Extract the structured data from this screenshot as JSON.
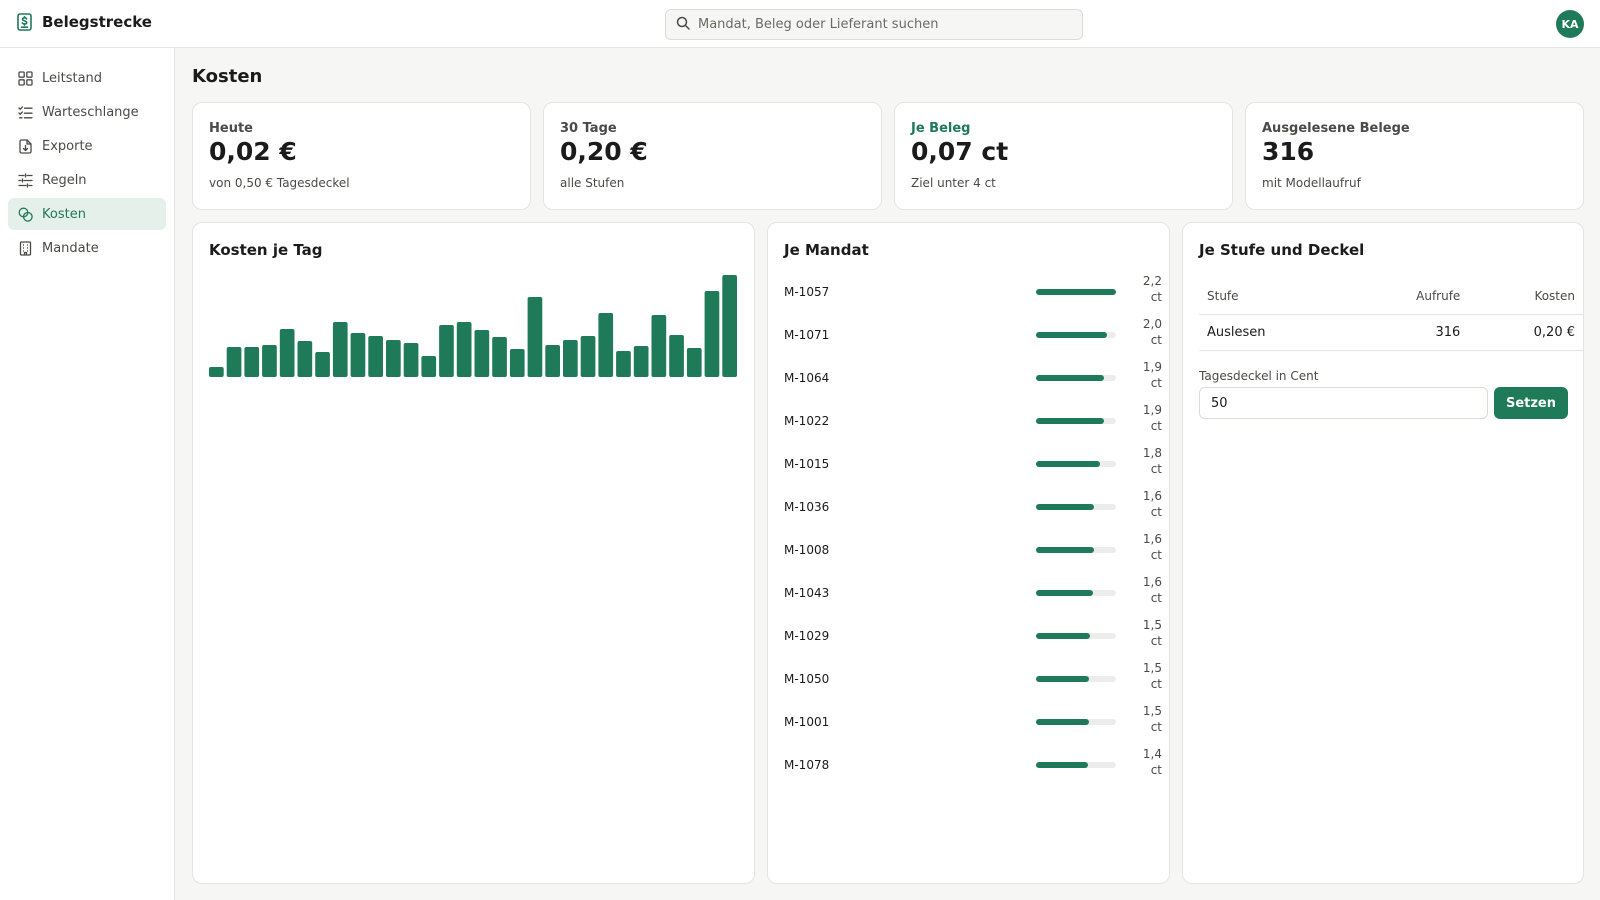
{
  "app": {
    "name": "Belegstrecke",
    "user_initials": "KA"
  },
  "search": {
    "placeholder": "Mandat, Beleg oder Lieferant suchen"
  },
  "sidebar": {
    "items": [
      {
        "label": "Leitstand",
        "icon": "dashboard-icon",
        "active": false
      },
      {
        "label": "Warteschlange",
        "icon": "list-check-icon",
        "active": false
      },
      {
        "label": "Exporte",
        "icon": "file-export-icon",
        "active": false
      },
      {
        "label": "Regeln",
        "icon": "sliders-icon",
        "active": false
      },
      {
        "label": "Kosten",
        "icon": "coins-icon",
        "active": true
      },
      {
        "label": "Mandate",
        "icon": "building-icon",
        "active": false
      }
    ]
  },
  "page": {
    "title": "Kosten"
  },
  "stats": [
    {
      "label": "Heute",
      "value": "0,02 €",
      "sub": "von 0,50 € Tagesdeckel",
      "accent": false
    },
    {
      "label": "30 Tage",
      "value": "0,20 €",
      "sub": "alle Stufen",
      "accent": false
    },
    {
      "label": "Je Beleg",
      "value": "0,07 ct",
      "sub": "Ziel unter 4 ct",
      "accent": true
    },
    {
      "label": "Ausgelesene Belege",
      "value": "316",
      "sub": "mit Modellaufruf",
      "accent": false
    }
  ],
  "daily_chart": {
    "title": "Kosten je Tag"
  },
  "chart_data": {
    "type": "bar",
    "title": "Kosten je Tag",
    "xlabel": "",
    "ylabel": "",
    "values": [
      10,
      30,
      30,
      32,
      48,
      36,
      25,
      55,
      44,
      41,
      37,
      34,
      21,
      52,
      55,
      47,
      40,
      28,
      80,
      32,
      37,
      41,
      64,
      26,
      31,
      62,
      42,
      29,
      86,
      102
    ],
    "ylim": [
      0,
      102
    ],
    "color": "#1f7a5a"
  },
  "per_mandate": {
    "title": "Je Mandat",
    "rows": [
      {
        "name": "M-1057",
        "value_num": "2,2",
        "unit": "ct",
        "fraction": 1.0
      },
      {
        "name": "M-1071",
        "value_num": "2,0",
        "unit": "ct",
        "fraction": 0.89
      },
      {
        "name": "M-1064",
        "value_num": "1,9",
        "unit": "ct",
        "fraction": 0.85
      },
      {
        "name": "M-1022",
        "value_num": "1,9",
        "unit": "ct",
        "fraction": 0.85
      },
      {
        "name": "M-1015",
        "value_num": "1,8",
        "unit": "ct",
        "fraction": 0.8
      },
      {
        "name": "M-1036",
        "value_num": "1,6",
        "unit": "ct",
        "fraction": 0.72
      },
      {
        "name": "M-1008",
        "value_num": "1,6",
        "unit": "ct",
        "fraction": 0.72
      },
      {
        "name": "M-1043",
        "value_num": "1,6",
        "unit": "ct",
        "fraction": 0.71
      },
      {
        "name": "M-1029",
        "value_num": "1,5",
        "unit": "ct",
        "fraction": 0.68
      },
      {
        "name": "M-1050",
        "value_num": "1,5",
        "unit": "ct",
        "fraction": 0.66
      },
      {
        "name": "M-1001",
        "value_num": "1,5",
        "unit": "ct",
        "fraction": 0.66
      },
      {
        "name": "M-1078",
        "value_num": "1,4",
        "unit": "ct",
        "fraction": 0.65
      }
    ]
  },
  "stages": {
    "title": "Je Stufe und Deckel",
    "headers": {
      "stage": "Stufe",
      "calls": "Aufrufe",
      "cost": "Kosten"
    },
    "rows": [
      {
        "stage": "Auslesen",
        "calls": "316",
        "cost": "0,20 €"
      }
    ],
    "cap_label": "Tagesdeckel in Cent",
    "cap_value": "50",
    "cap_button": "Setzen"
  },
  "colors": {
    "accent": "#1f7a5a",
    "accent_light": "#e6f0eb",
    "track": "#ececea"
  }
}
